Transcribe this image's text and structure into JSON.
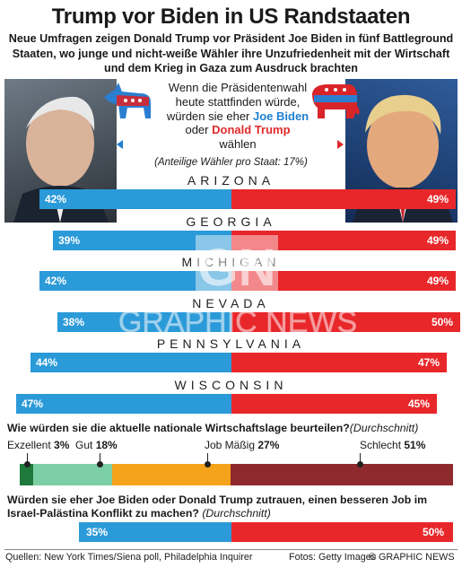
{
  "title": "Trump vor Biden in US Randstaaten",
  "subtitle": "Neue Umfragen zeigen Donald Trump vor Präsident Joe Biden in fünf Battleground Staaten, wo junge und nicht-weiße Wähler ihre Unzufriedenheit mit der Wirtschaft und dem Krieg in Gaza zum Ausdruck brachten",
  "question": {
    "line1": "Wenn die Präsidentenwahl",
    "line2": "heute stattfinden würde,",
    "line3": "würden sie eher",
    "biden": "Joe Biden",
    "oder": "oder",
    "trump": "Donald Trump",
    "line5": "wählen"
  },
  "note": "(Anteilige Wähler pro Staat: 17%)",
  "colors": {
    "biden": "#2b9ad8",
    "trump": "#e8272a",
    "biden_text": "#1f7fd0",
    "dark_red": "#8e2a2e",
    "orange": "#f5a31a",
    "light_green": "#7ccfa4",
    "dark_green": "#1e7a3c"
  },
  "chart_data": [
    {
      "type": "bar",
      "orientation": "horizontal-diverging",
      "categories": [
        "ARIZONA",
        "GEORGIA",
        "MICHIGAN",
        "NEVADA",
        "PENNSYLVANIA",
        "WISCONSIN"
      ],
      "series": [
        {
          "name": "Joe Biden",
          "values": [
            42,
            39,
            42,
            38,
            44,
            47
          ]
        },
        {
          "name": "Donald Trump",
          "values": [
            49,
            49,
            49,
            50,
            47,
            45
          ]
        }
      ],
      "labels_biden": [
        "42%",
        "39%",
        "42%",
        "38%",
        "44%",
        "47%"
      ],
      "labels_trump": [
        "49%",
        "49%",
        "49%",
        "50%",
        "47%",
        "45%"
      ]
    },
    {
      "type": "bar",
      "orientation": "stacked-horizontal",
      "title": "Wie würden sie die aktuelle nationale Wirtschaftslage beurteilen?",
      "title_suffix": "(Durchschnitt)",
      "categories": [
        "Exzellent",
        "Gut",
        "Job Mäßig",
        "Schlecht"
      ],
      "values": [
        3,
        18,
        27,
        51
      ],
      "labels": [
        "3%",
        "18%",
        "27%",
        "51%"
      ]
    },
    {
      "type": "bar",
      "orientation": "horizontal-diverging",
      "title": "Würden sie eher Joe Biden oder Donald Trump zutrauen, einen besseren Job im Israel-Palästina Konflikt zu machen?",
      "title_suffix": "(Durchschnitt)",
      "series": [
        {
          "name": "Joe Biden",
          "values": [
            35
          ]
        },
        {
          "name": "Donald Trump",
          "values": [
            50
          ]
        }
      ],
      "labels_biden": [
        "35%"
      ],
      "labels_trump": [
        "50%"
      ]
    }
  ],
  "watermark": {
    "logo": "GN",
    "text": "GRAPHIC NEWS"
  },
  "footer": {
    "sources": "Quellen: New York Times/Siena poll, Philadelphia Inquirer",
    "photos": "Fotos: Getty Images",
    "copyright": "© GRAPHIC NEWS"
  }
}
